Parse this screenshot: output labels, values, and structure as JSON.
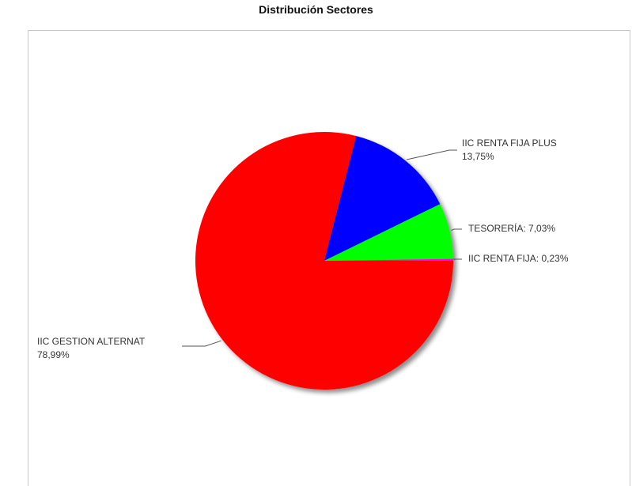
{
  "chart_data": {
    "type": "pie",
    "title": "Distribución Sectores",
    "slices": [
      {
        "name": "IIC GESTION ALTERNAT",
        "percent_label": "78,99%",
        "value": 78.99,
        "color": "#ff0000"
      },
      {
        "name": "IIC RENTA FIJA PLUS",
        "percent_label": "13,75%",
        "value": 13.75,
        "color": "#0000ff"
      },
      {
        "name": "TESORERÍA",
        "percent_label": "7,03%",
        "value": 7.03,
        "color": "#00ff00"
      },
      {
        "name": "IIC RENTA FIJA",
        "percent_label": "0,23%",
        "value": 0.23,
        "color": "#ff00ff"
      }
    ],
    "legend": "none",
    "grid": false
  }
}
